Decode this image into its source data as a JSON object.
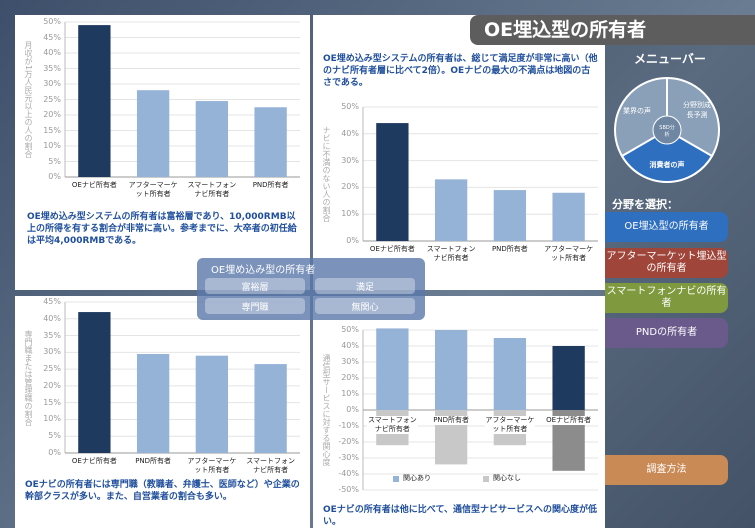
{
  "header": {
    "title": "OE埋込型の所有者"
  },
  "menu": {
    "title": "メニューバー",
    "wheel": [
      "業界の声",
      "分野別成長予測",
      "消費者の声"
    ],
    "center": "SBD分析",
    "select_label": "分野を選択：",
    "buttons": [
      "OE埋込型の所有者",
      "アフターマーケット埋込型の所有者",
      "スマートフォンナビの所有者",
      "PNDの所有者"
    ],
    "method": "調査方法"
  },
  "popup": {
    "title": "OE埋め込み型の所有者",
    "buttons": [
      "富裕層",
      "満足",
      "専門職",
      "無関心"
    ]
  },
  "chart_data": [
    {
      "type": "bar",
      "ylabel": "月収が1万人民元以上の人の割合",
      "caption": "OE埋め込み型システムの所有者は富裕層であり、10,000RMB以上の所得を有する割合が非常に高い。参考までに、大卒者の初任給は平均4,000RMBである。",
      "categories": [
        "OEナビ所有者",
        "アフターマーケット所有者",
        "スマートフォンナビ所有者",
        "PND所有者"
      ],
      "values": [
        49,
        28,
        24.5,
        22.5
      ],
      "colors": [
        "#1f3a5f",
        "#95b3d7",
        "#95b3d7",
        "#95b3d7"
      ],
      "ylim": [
        0,
        50
      ],
      "yticks": [
        {
          "value": 0,
          "label": "0%"
        },
        {
          "value": 5,
          "label": "5%"
        },
        {
          "value": 10,
          "label": "10%"
        },
        {
          "value": 15,
          "label": "15%"
        },
        {
          "value": 20,
          "label": "20%"
        },
        {
          "value": 25,
          "label": "25%"
        },
        {
          "value": 30,
          "label": "30%"
        },
        {
          "value": 35,
          "label": "35%"
        },
        {
          "value": 40,
          "label": "40%"
        },
        {
          "value": 45,
          "label": "45%"
        },
        {
          "value": 50,
          "label": "50%"
        }
      ],
      "grid": true
    },
    {
      "type": "bar",
      "ylabel": "ナビに不満のない人の割合",
      "caption": "OE埋め込み型システムの所有者は、総じて満足度が非常に高い（他のナビ所有者層に比べて2倍）。OEナビの最大の不満点は地図の古さである。",
      "categories": [
        "OEナビ所有者",
        "スマートフォンナビ所有者",
        "PND所有者",
        "アフターマーケット所有者"
      ],
      "values": [
        44,
        23,
        19,
        18
      ],
      "colors": [
        "#1f3a5f",
        "#95b3d7",
        "#95b3d7",
        "#95b3d7"
      ],
      "ylim": [
        0,
        50
      ],
      "yticks": [
        {
          "value": 0,
          "label": "0%"
        },
        {
          "value": 10,
          "label": "10%"
        },
        {
          "value": 20,
          "label": "20%"
        },
        {
          "value": 30,
          "label": "30%"
        },
        {
          "value": 40,
          "label": "40%"
        },
        {
          "value": 50,
          "label": "50%"
        }
      ],
      "grid": true
    },
    {
      "type": "bar",
      "ylabel": "専門職または管理職の割合",
      "caption": "OEナビの所有者には専門職（教職者、弁護士、医師など）や企業の幹部クラスが多い。また、自営業者の割合も多い。",
      "categories": [
        "OEナビ所有者",
        "PND所有者",
        "アフターマーケット所有者",
        "スマートフォンナビ所有者"
      ],
      "values": [
        42,
        29.5,
        29,
        26.5
      ],
      "colors": [
        "#1f3a5f",
        "#95b3d7",
        "#95b3d7",
        "#95b3d7"
      ],
      "ylim": [
        0,
        45
      ],
      "yticks": [
        {
          "value": 0,
          "label": "0%"
        },
        {
          "value": 5,
          "label": "5%"
        },
        {
          "value": 10,
          "label": "10%"
        },
        {
          "value": 15,
          "label": "15%"
        },
        {
          "value": 20,
          "label": "20%"
        },
        {
          "value": 25,
          "label": "25%"
        },
        {
          "value": 30,
          "label": "30%"
        },
        {
          "value": 35,
          "label": "35%"
        },
        {
          "value": 40,
          "label": "40%"
        },
        {
          "value": 45,
          "label": "45%"
        }
      ],
      "grid": true
    },
    {
      "type": "bar",
      "ylabel": "通信型サービスに対する関心度",
      "caption": "OEナビの所有者は他に比べて、通信型ナビサービスへの関心度が低い。",
      "categories": [
        "スマートフォンナビ所有者",
        "PND所有者",
        "アフターマーケット所有者",
        "OEナビ所有者"
      ],
      "series": [
        {
          "name": "関心あり",
          "color": "#95b3d7",
          "colors": [
            "#95b3d7",
            "#95b3d7",
            "#95b3d7",
            "#1f3a5f"
          ],
          "values": [
            51,
            50,
            45,
            40
          ]
        },
        {
          "name": "関心なし",
          "color": "#c8c8c8",
          "colors": [
            "#c8c8c8",
            "#c8c8c8",
            "#c8c8c8",
            "#8c8c8c"
          ],
          "values": [
            -22,
            -34,
            -22,
            -38
          ]
        }
      ],
      "legend": "bottom",
      "ylim": [
        -50,
        50
      ],
      "yticks": [
        {
          "value": -50,
          "label": "-50%"
        },
        {
          "value": -40,
          "label": "-40%"
        },
        {
          "value": -30,
          "label": "-30%"
        },
        {
          "value": -20,
          "label": "-20%"
        },
        {
          "value": -10,
          "label": "-10%"
        },
        {
          "value": 0,
          "label": "0%"
        },
        {
          "value": 10,
          "label": "10%"
        },
        {
          "value": 20,
          "label": "20%"
        },
        {
          "value": 30,
          "label": "30%"
        },
        {
          "value": 40,
          "label": "40%"
        },
        {
          "value": 50,
          "label": "50%"
        }
      ],
      "grid": true
    }
  ]
}
